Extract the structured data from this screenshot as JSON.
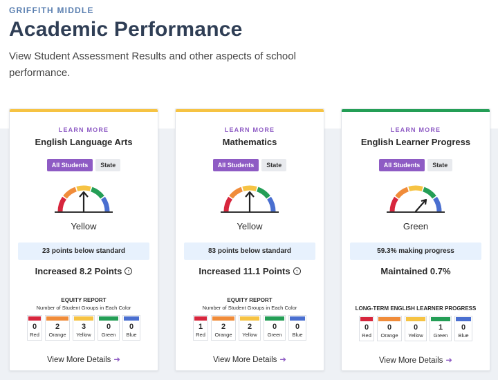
{
  "header": {
    "school": "GRIFFITH MIDDLE",
    "title": "Academic Performance",
    "subtitle": "View Student Assessment Results and other aspects of school performance."
  },
  "colors": {
    "accent": "#8e5bc4",
    "red": "#d7263d",
    "orange": "#f08c3a",
    "yellow": "#f6c343",
    "green": "#249e56",
    "blue": "#4a6fd0"
  },
  "cards": [
    {
      "learn": "LEARN MORE",
      "name": "English Language Arts",
      "toggle_active": "All Students",
      "toggle_inactive": "State",
      "top_color": "#f6c343",
      "needle_level": "yellow",
      "level": "Yellow",
      "status": "23 points below standard",
      "change": "Increased 8.2 Points",
      "change_icon": "arrow-up-circle-icon",
      "section_title": "EQUITY REPORT",
      "section_sub": "Number of Student Groups in Each Color",
      "groups": [
        {
          "color": "Red",
          "count": "0"
        },
        {
          "color": "Orange",
          "count": "2"
        },
        {
          "color": "Yellow",
          "count": "3"
        },
        {
          "color": "Green",
          "count": "0"
        },
        {
          "color": "Blue",
          "count": "0"
        }
      ],
      "more": "View More Details"
    },
    {
      "learn": "LEARN MORE",
      "name": "Mathematics",
      "toggle_active": "All Students",
      "toggle_inactive": "State",
      "top_color": "#f6c343",
      "needle_level": "yellow",
      "level": "Yellow",
      "status": "83 points below standard",
      "change": "Increased 11.1 Points",
      "change_icon": "arrow-up-circle-icon",
      "section_title": "EQUITY REPORT",
      "section_sub": "Number of Student Groups in Each Color",
      "groups": [
        {
          "color": "Red",
          "count": "1"
        },
        {
          "color": "Orange",
          "count": "2"
        },
        {
          "color": "Yellow",
          "count": "2"
        },
        {
          "color": "Green",
          "count": "0"
        },
        {
          "color": "Blue",
          "count": "0"
        }
      ],
      "more": "View More Details"
    },
    {
      "learn": "LEARN MORE",
      "name": "English Learner Progress",
      "toggle_active": "All Students",
      "toggle_inactive": "State",
      "top_color": "#249e56",
      "needle_level": "green",
      "level": "Green",
      "status": "59.3% making progress",
      "change": "Maintained 0.7%",
      "change_icon": "",
      "section_title": "LONG-TERM ENGLISH LEARNER PROGRESS",
      "section_sub": "",
      "groups": [
        {
          "color": "Red",
          "count": "0"
        },
        {
          "color": "Orange",
          "count": "0"
        },
        {
          "color": "Yellow",
          "count": "0"
        },
        {
          "color": "Green",
          "count": "1"
        },
        {
          "color": "Blue",
          "count": "0"
        }
      ],
      "more": "View More Details"
    }
  ]
}
